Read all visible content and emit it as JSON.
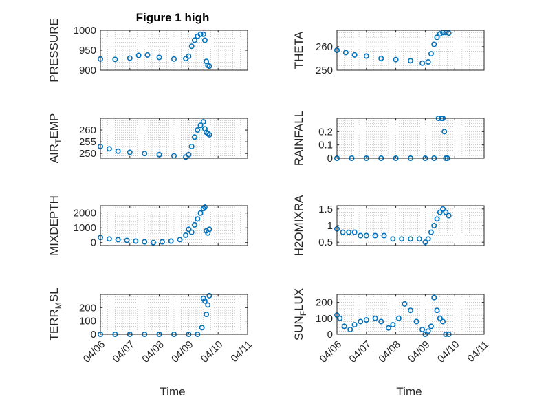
{
  "figure": {
    "title": "Figure 1 high",
    "xlabel": "Time",
    "marker_color": "#0072BD",
    "grid_color": "#b0b0b0"
  },
  "chart_data": [
    {
      "type": "scatter",
      "title": "Figure 1 high",
      "ylabel": "PRESSURE",
      "ylim": [
        900,
        1000
      ],
      "yticks": [
        {
          "v": 900,
          "label": "900"
        },
        {
          "v": 950,
          "label": "950"
        },
        {
          "v": 1000,
          "label": "1000"
        }
      ],
      "grid": true,
      "x": [
        0.0,
        0.5,
        1.0,
        1.3,
        1.6,
        2.0,
        2.5,
        2.9,
        3.0,
        3.1,
        3.2,
        3.3,
        3.4,
        3.5,
        3.55,
        3.6,
        3.65,
        3.7
      ],
      "y": [
        928,
        927,
        930,
        937,
        938,
        932,
        928,
        929,
        935,
        960,
        975,
        985,
        990,
        990,
        975,
        922,
        912,
        910
      ]
    },
    {
      "type": "scatter",
      "ylabel": "THETA",
      "ylim": [
        250,
        267
      ],
      "yticks": [
        {
          "v": 250,
          "label": "250"
        },
        {
          "v": 260,
          "label": "260"
        }
      ],
      "grid": true,
      "x": [
        0.0,
        0.3,
        0.6,
        1.0,
        1.5,
        2.0,
        2.5,
        2.9,
        3.1,
        3.2,
        3.3,
        3.4,
        3.5,
        3.6,
        3.7,
        3.8
      ],
      "y": [
        258.5,
        257.5,
        256.5,
        256,
        255,
        254.5,
        254,
        253,
        253.5,
        257,
        261,
        264,
        265.5,
        266,
        266,
        265.8
      ]
    },
    {
      "type": "scatter",
      "ylabel": "AIR_TEMP",
      "ylabel_main": "AIR",
      "ylabel_sub": "T",
      "ylabel_rest": "EMP",
      "ylim": [
        248,
        265
      ],
      "yticks": [
        {
          "v": 250,
          "label": "250"
        },
        {
          "v": 255,
          "label": "255"
        },
        {
          "v": 260,
          "label": "260"
        }
      ],
      "grid": true,
      "x": [
        0.0,
        0.3,
        0.6,
        1.0,
        1.5,
        2.0,
        2.5,
        2.9,
        3.0,
        3.1,
        3.2,
        3.3,
        3.4,
        3.5,
        3.55,
        3.6,
        3.65,
        3.7
      ],
      "y": [
        253,
        252,
        251,
        250.5,
        250,
        249.5,
        249,
        248.5,
        249.5,
        253,
        257,
        260,
        262,
        263.5,
        260.5,
        259,
        258.5,
        258
      ]
    },
    {
      "type": "scatter",
      "ylabel": "RAINFALL",
      "ylim": [
        0,
        0.3
      ],
      "yticks": [
        {
          "v": 0,
          "label": "0"
        },
        {
          "v": 0.1,
          "label": "0.1"
        },
        {
          "v": 0.2,
          "label": "0.2"
        }
      ],
      "grid": true,
      "x": [
        0.0,
        0.5,
        1.0,
        1.5,
        2.0,
        2.5,
        3.0,
        3.3,
        3.45,
        3.55,
        3.6,
        3.65,
        3.7,
        3.75
      ],
      "y": [
        0,
        0,
        0,
        0,
        0,
        0,
        0,
        0,
        0.3,
        0.3,
        0.3,
        0.2,
        0,
        0
      ]
    },
    {
      "type": "scatter",
      "ylabel": "MIXDEPTH",
      "ylim": [
        -200,
        2500
      ],
      "yticks": [
        {
          "v": 0,
          "label": "0"
        },
        {
          "v": 1000,
          "label": "1000"
        },
        {
          "v": 2000,
          "label": "2000"
        }
      ],
      "grid": true,
      "x": [
        0.0,
        0.3,
        0.6,
        0.9,
        1.2,
        1.5,
        1.8,
        2.1,
        2.4,
        2.7,
        2.9,
        3.0,
        3.1,
        3.2,
        3.3,
        3.4,
        3.5,
        3.55,
        3.6,
        3.65,
        3.7
      ],
      "y": [
        350,
        250,
        200,
        150,
        100,
        50,
        0,
        50,
        100,
        200,
        500,
        900,
        700,
        1200,
        1600,
        2000,
        2300,
        2400,
        800,
        650,
        900
      ]
    },
    {
      "type": "scatter",
      "ylabel": "H2OMIXRA",
      "ylim": [
        0.4,
        1.6
      ],
      "yticks": [
        {
          "v": 0.5,
          "label": "0.5"
        },
        {
          "v": 1,
          "label": "1"
        },
        {
          "v": 1.5,
          "label": "1.5"
        }
      ],
      "grid": true,
      "x": [
        0.0,
        0.2,
        0.4,
        0.6,
        0.8,
        1.0,
        1.3,
        1.6,
        1.9,
        2.2,
        2.5,
        2.8,
        3.0,
        3.1,
        3.2,
        3.3,
        3.4,
        3.5,
        3.6,
        3.7,
        3.8
      ],
      "y": [
        0.9,
        0.8,
        0.8,
        0.8,
        0.7,
        0.7,
        0.7,
        0.7,
        0.6,
        0.6,
        0.6,
        0.6,
        0.5,
        0.6,
        0.8,
        1.0,
        1.2,
        1.4,
        1.5,
        1.4,
        1.3
      ]
    },
    {
      "type": "scatter",
      "ylabel": "TERR_MSL",
      "ylabel_main": "TERR",
      "ylabel_sub": "M",
      "ylabel_rest": "SL",
      "ylim": [
        0,
        300
      ],
      "yticks": [
        {
          "v": 0,
          "label": "0"
        },
        {
          "v": 100,
          "label": "100"
        },
        {
          "v": 200,
          "label": "200"
        }
      ],
      "grid": true,
      "xticks": [
        {
          "v": 0,
          "label": "04/06"
        },
        {
          "v": 1,
          "label": "04/07"
        },
        {
          "v": 2,
          "label": "04/08"
        },
        {
          "v": 3,
          "label": "04/09"
        },
        {
          "v": 4,
          "label": "04/10"
        },
        {
          "v": 5,
          "label": "04/11"
        }
      ],
      "x": [
        0.0,
        0.5,
        1.0,
        1.5,
        2.0,
        2.5,
        3.0,
        3.3,
        3.45,
        3.5,
        3.55,
        3.6,
        3.65,
        3.7
      ],
      "y": [
        0,
        0,
        0,
        0,
        0,
        0,
        0,
        0,
        50,
        270,
        250,
        150,
        220,
        290
      ]
    },
    {
      "type": "scatter",
      "ylabel": "SUN_FLUX",
      "ylabel_main": "SUN",
      "ylabel_sub": "F",
      "ylabel_rest": "LUX",
      "ylim": [
        0,
        250
      ],
      "yticks": [
        {
          "v": 0,
          "label": "0"
        },
        {
          "v": 100,
          "label": "100"
        },
        {
          "v": 200,
          "label": "200"
        }
      ],
      "grid": true,
      "xticks": [
        {
          "v": 0,
          "label": "04/06"
        },
        {
          "v": 1,
          "label": "04/07"
        },
        {
          "v": 2,
          "label": "04/08"
        },
        {
          "v": 3,
          "label": "04/09"
        },
        {
          "v": 4,
          "label": "04/10"
        },
        {
          "v": 5,
          "label": "04/11"
        }
      ],
      "x": [
        0.0,
        0.1,
        0.25,
        0.45,
        0.6,
        0.8,
        1.0,
        1.3,
        1.5,
        1.75,
        1.9,
        2.1,
        2.3,
        2.5,
        2.7,
        2.9,
        3.0,
        3.1,
        3.2,
        3.3,
        3.4,
        3.5,
        3.6,
        3.7,
        3.8
      ],
      "y": [
        120,
        100,
        50,
        30,
        60,
        80,
        90,
        100,
        80,
        40,
        60,
        100,
        190,
        150,
        80,
        30,
        0,
        20,
        50,
        230,
        150,
        100,
        80,
        0,
        0
      ]
    }
  ]
}
